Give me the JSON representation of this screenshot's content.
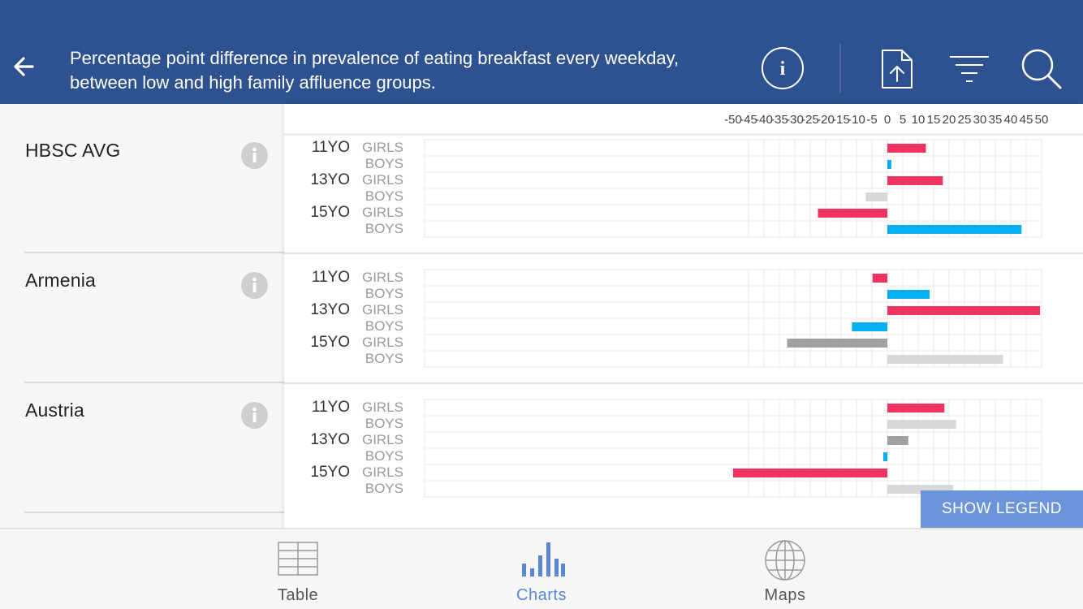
{
  "header": {
    "title": "Percentage point difference in prevalence of eating breakfast every weekday, between low and high family affluence groups.",
    "info_icon_glyph": "i"
  },
  "colors": {
    "header_bg": "#2e528f",
    "girls_bar": "#ef3461",
    "boys_bar": "#06aff0",
    "grey_dark": "#a0a0a0",
    "grey_light": "#d8d8d8",
    "accent": "#5b86d6"
  },
  "axis": {
    "ticks": [
      "-50",
      "-45",
      "-40",
      "-35",
      "-30",
      "-25",
      "-20",
      "-15",
      "-10",
      "-5",
      "0",
      "5",
      "10",
      "15",
      "20",
      "25",
      "30",
      "35",
      "40",
      "45",
      "50"
    ]
  },
  "chart_data": {
    "type": "bar",
    "orientation": "horizontal",
    "xlim": [
      -50,
      50
    ],
    "grid": true,
    "age_labels": [
      "11YO",
      "13YO",
      "15YO"
    ],
    "sex_labels": [
      "GIRLS",
      "BOYS"
    ],
    "categories": [
      "11YO GIRLS",
      "11YO BOYS",
      "13YO GIRLS",
      "13YO BOYS",
      "15YO GIRLS",
      "15YO BOYS"
    ],
    "panels": [
      {
        "country": "HBSC AVG",
        "values": [
          12.5,
          1.3,
          18,
          -7,
          -22.5,
          43.5
        ],
        "color_keys": [
          "girls",
          "boys",
          "girls",
          "grey_light",
          "girls",
          "boys"
        ]
      },
      {
        "country": "Armenia",
        "values": [
          -4.8,
          13.7,
          49.5,
          -11.5,
          -32.5,
          37.5
        ],
        "color_keys": [
          "girls",
          "boys",
          "girls",
          "boys",
          "grey_dark",
          "grey_light"
        ]
      },
      {
        "country": "Austria",
        "values": [
          18.5,
          22.3,
          6.8,
          -1.3,
          -50,
          21.3
        ],
        "color_keys": [
          "girls",
          "grey_light",
          "grey_dark",
          "boys",
          "girls",
          "grey_light"
        ]
      }
    ]
  },
  "legend_button": "SHOW LEGEND",
  "tabs": [
    {
      "label": "Table",
      "icon": "table-icon",
      "active": false
    },
    {
      "label": "Charts",
      "icon": "bar-chart-icon",
      "active": true
    },
    {
      "label": "Maps",
      "icon": "globe-icon",
      "active": false
    }
  ]
}
